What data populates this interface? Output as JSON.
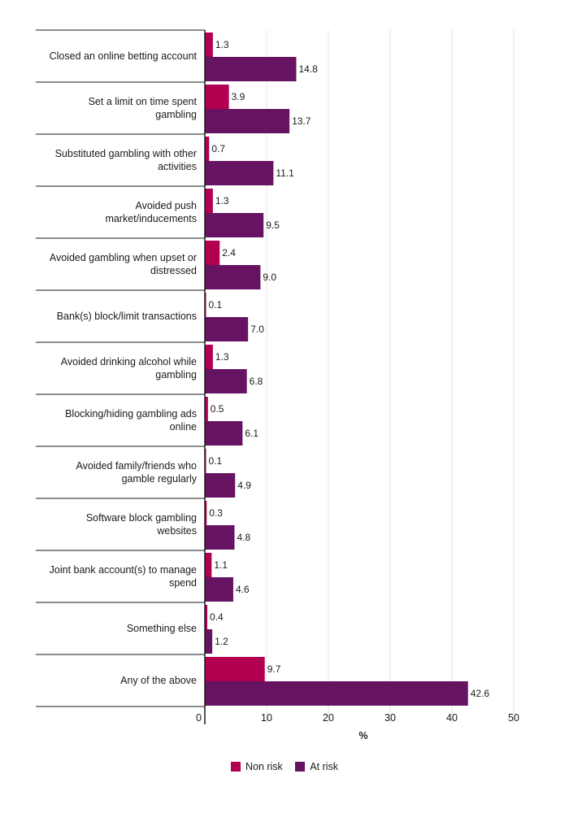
{
  "chart_data": {
    "type": "bar",
    "orientation": "horizontal",
    "categories": [
      "Closed an online betting account",
      "Set a limit on time spent gambling",
      "Substituted gambling with other activities",
      "Avoided push market/inducements",
      "Avoided gambling when upset or distressed",
      "Bank(s) block/limit transactions",
      "Avoided drinking alcohol while gambling",
      "Blocking/hiding gambling ads online",
      "Avoided family/friends who gamble regularly",
      "Software block gambling websites",
      "Joint bank account(s) to manage spend",
      "Something else",
      "Any of the above"
    ],
    "category_lines": [
      [
        "Closed an online betting account"
      ],
      [
        "Set a limit on time spent",
        "gambling"
      ],
      [
        "Substituted gambling with other",
        "activities"
      ],
      [
        "Avoided push",
        "market/inducements"
      ],
      [
        "Avoided gambling when upset or",
        "distressed"
      ],
      [
        "Bank(s) block/limit transactions"
      ],
      [
        "Avoided drinking alcohol while",
        "gambling"
      ],
      [
        "Blocking/hiding gambling ads",
        "online"
      ],
      [
        "Avoided family/friends who",
        "gamble regularly"
      ],
      [
        "Software block gambling",
        "websites"
      ],
      [
        "Joint bank account(s) to manage",
        "spend"
      ],
      [
        "Something else"
      ],
      [
        "Any of the above"
      ]
    ],
    "series": [
      {
        "name": "Non risk",
        "color": "#b0004f",
        "values": [
          1.3,
          3.9,
          0.7,
          1.3,
          2.4,
          0.1,
          1.3,
          0.5,
          0.1,
          0.3,
          1.1,
          0.4,
          9.7
        ],
        "labels": [
          "1.3",
          "3.9",
          "0.7",
          "1.3",
          "2.4",
          "0.1",
          "1.3",
          "0.5",
          "0.1",
          "0.3",
          "1.1",
          "0.4",
          "9.7"
        ]
      },
      {
        "name": "At risk",
        "color": "#661361",
        "values": [
          14.8,
          13.7,
          11.1,
          9.5,
          9.0,
          7.0,
          6.8,
          6.1,
          4.9,
          4.8,
          4.6,
          1.2,
          42.6
        ],
        "labels": [
          "14.8",
          "13.7",
          "11.1",
          "9.5",
          "9.0",
          "7.0",
          "6.8",
          "6.1",
          "4.9",
          "4.8",
          "4.6",
          "1.2",
          "42.6"
        ]
      }
    ],
    "xlim": [
      0,
      50
    ],
    "xticks": [
      0,
      10,
      20,
      30,
      40,
      50
    ],
    "xtick_labels": [
      "0",
      "10",
      "20",
      "30",
      "40",
      "50"
    ],
    "xlabel": "%",
    "title": "",
    "grid": "vertical",
    "legend_position": "bottom-center"
  }
}
